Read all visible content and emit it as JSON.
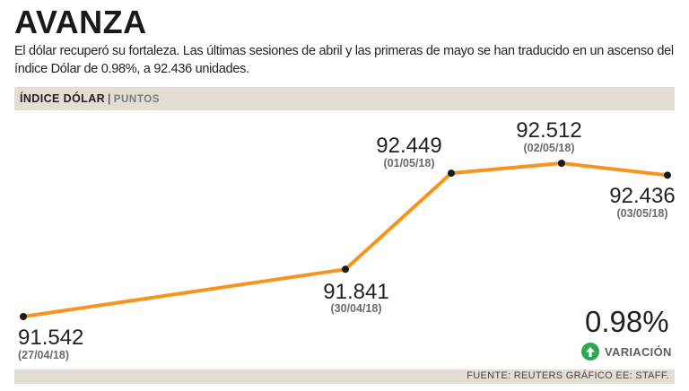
{
  "header": {
    "title": "AVANZA",
    "description": "El dólar recuperó su fortaleza. Las últimas sesiones de abril y las primeras de mayo se han traducido en un ascenso del índice Dólar de 0.98%, a 92.436 unidades."
  },
  "chart_header": {
    "label": "ÍNDICE DÓLAR",
    "separator": "|",
    "unit": "PUNTOS"
  },
  "chart_data": {
    "type": "line",
    "x": [
      "(27/04/18)",
      "(30/04/18)",
      "(01/05/18)",
      "(02/05/18)",
      "(03/05/18)"
    ],
    "series": [
      {
        "values": [
          91.542,
          91.841,
          92.449,
          92.512,
          92.436
        ]
      }
    ],
    "value_labels": [
      "91.542",
      "91.841",
      "92.449",
      "92.512",
      "92.436"
    ],
    "color": "#f7941d",
    "grid": false
  },
  "variation": {
    "value": "0.98%",
    "label": "VARIACIÓN",
    "color": "#2ea84f"
  },
  "footer": {
    "source": "FUENTE: REUTERS GRÁFICO EE: STAFF."
  }
}
